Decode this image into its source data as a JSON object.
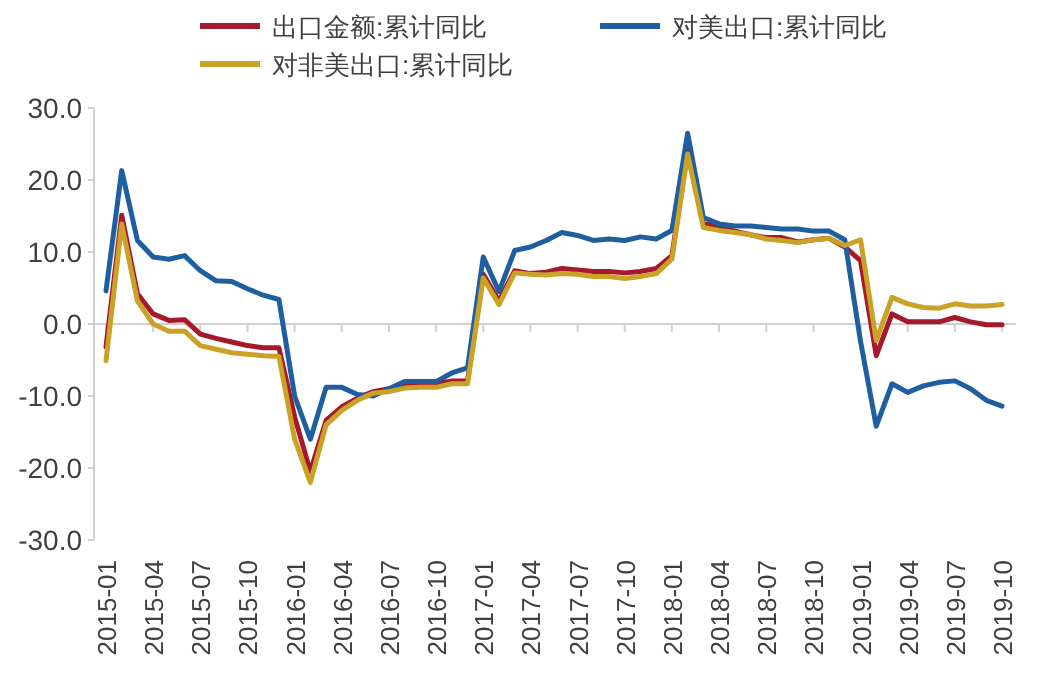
{
  "chart_data": {
    "type": "line",
    "legend": "top",
    "grid": false,
    "marker": "none",
    "line_style": "solid",
    "x": [
      "2015-01",
      "2015-02",
      "2015-03",
      "2015-04",
      "2015-05",
      "2015-06",
      "2015-07",
      "2015-08",
      "2015-09",
      "2015-10",
      "2015-11",
      "2015-12",
      "2016-01",
      "2016-02",
      "2016-03",
      "2016-04",
      "2016-05",
      "2016-06",
      "2016-07",
      "2016-08",
      "2016-09",
      "2016-10",
      "2016-11",
      "2016-12",
      "2017-01",
      "2017-02",
      "2017-03",
      "2017-04",
      "2017-05",
      "2017-06",
      "2017-07",
      "2017-08",
      "2017-09",
      "2017-10",
      "2017-11",
      "2017-12",
      "2018-01",
      "2018-02",
      "2018-03",
      "2018-04",
      "2018-05",
      "2018-06",
      "2018-07",
      "2018-08",
      "2018-09",
      "2018-10",
      "2018-11",
      "2018-12",
      "2019-01",
      "2019-02",
      "2019-03",
      "2019-04",
      "2019-05",
      "2019-06",
      "2019-07",
      "2019-08",
      "2019-09",
      "2019-10"
    ],
    "series": [
      {
        "name": "出口金额:累计同比",
        "color": "#a5192a",
        "values": [
          -3.2,
          15.1,
          4.2,
          1.4,
          0.5,
          0.6,
          -1.4,
          -2,
          -2.5,
          -3,
          -3.3,
          -3.3,
          -12.9,
          -20.5,
          -13.4,
          -11.5,
          -10.3,
          -9.4,
          -9,
          -8.5,
          -8.5,
          -8.3,
          -7.9,
          -7.9,
          6.9,
          3.2,
          7.4,
          7,
          7.2,
          7.7,
          7.5,
          7.3,
          7.3,
          7.1,
          7.3,
          7.7,
          9.5,
          24,
          14,
          13.4,
          12.9,
          12.4,
          12,
          12,
          11.4,
          11.7,
          11.9,
          10.7,
          8.8,
          -4.4,
          1.4,
          0.3,
          0.3,
          0.3,
          0.9,
          0.3,
          -0.1,
          -0.1
        ]
      },
      {
        "name": "对美出口:累计同比",
        "color": "#1f5fa0",
        "values": [
          4.6,
          21.3,
          11.6,
          9.3,
          9,
          9.5,
          7.4,
          6,
          5.9,
          4.9,
          4,
          3.4,
          -10,
          -16,
          -8.8,
          -8.8,
          -9.8,
          -10,
          -9,
          -8,
          -8,
          -8,
          -6.8,
          -6.1,
          9.3,
          4.5,
          10.2,
          10.7,
          11.6,
          12.7,
          12.3,
          11.6,
          11.8,
          11.6,
          12.1,
          11.8,
          13,
          26.5,
          14.8,
          13.9,
          13.6,
          13.6,
          13.4,
          13.2,
          13.2,
          12.9,
          12.9,
          11.7,
          -2.4,
          -14.2,
          -8.3,
          -9.5,
          -8.6,
          -8.1,
          -7.9,
          -9,
          -10.6,
          -11.4
        ]
      },
      {
        "name": "对非美出口:累计同比",
        "color": "#c9a227",
        "values": [
          -5.1,
          13.9,
          3.2,
          0,
          -1,
          -1,
          -3,
          -3.5,
          -4,
          -4.2,
          -4.4,
          -4.5,
          -16,
          -22,
          -14,
          -12,
          -10.6,
          -9.6,
          -9.4,
          -8.9,
          -8.8,
          -8.8,
          -8.3,
          -8.3,
          6.4,
          2.7,
          7.1,
          6.9,
          6.8,
          7,
          6.9,
          6.6,
          6.6,
          6.3,
          6.6,
          7,
          9,
          23.6,
          13.4,
          13,
          12.7,
          12.4,
          11.8,
          11.6,
          11.3,
          11.7,
          11.9,
          10.9,
          11.7,
          -2.3,
          3.7,
          2.8,
          2.3,
          2.2,
          2.8,
          2.5,
          2.5,
          2.7
        ]
      }
    ],
    "xlim": [
      "2015-01",
      "2019-10"
    ],
    "xticks": [
      "2015-01",
      "2015-04",
      "2015-07",
      "2015-10",
      "2016-01",
      "2016-04",
      "2016-07",
      "2016-10",
      "2017-01",
      "2017-04",
      "2017-07",
      "2017-10",
      "2018-01",
      "2018-04",
      "2018-07",
      "2018-10",
      "2019-01",
      "2019-04",
      "2019-07",
      "2019-10"
    ],
    "ref_lines": [
      {
        "axis": "y",
        "value": 0,
        "color": "#d0d0d0",
        "line_style": "solid"
      }
    ],
    "ylim": [
      -30,
      30
    ],
    "yticks": [
      {
        "value": -30,
        "label": "-30.0"
      },
      {
        "value": -20,
        "label": "-20.0"
      },
      {
        "value": -10,
        "label": "-10.0"
      },
      {
        "value": 0,
        "label": "0.0"
      },
      {
        "value": 10,
        "label": "10.0"
      },
      {
        "value": 20,
        "label": "20.0"
      },
      {
        "value": 30,
        "label": "30.0"
      }
    ]
  }
}
